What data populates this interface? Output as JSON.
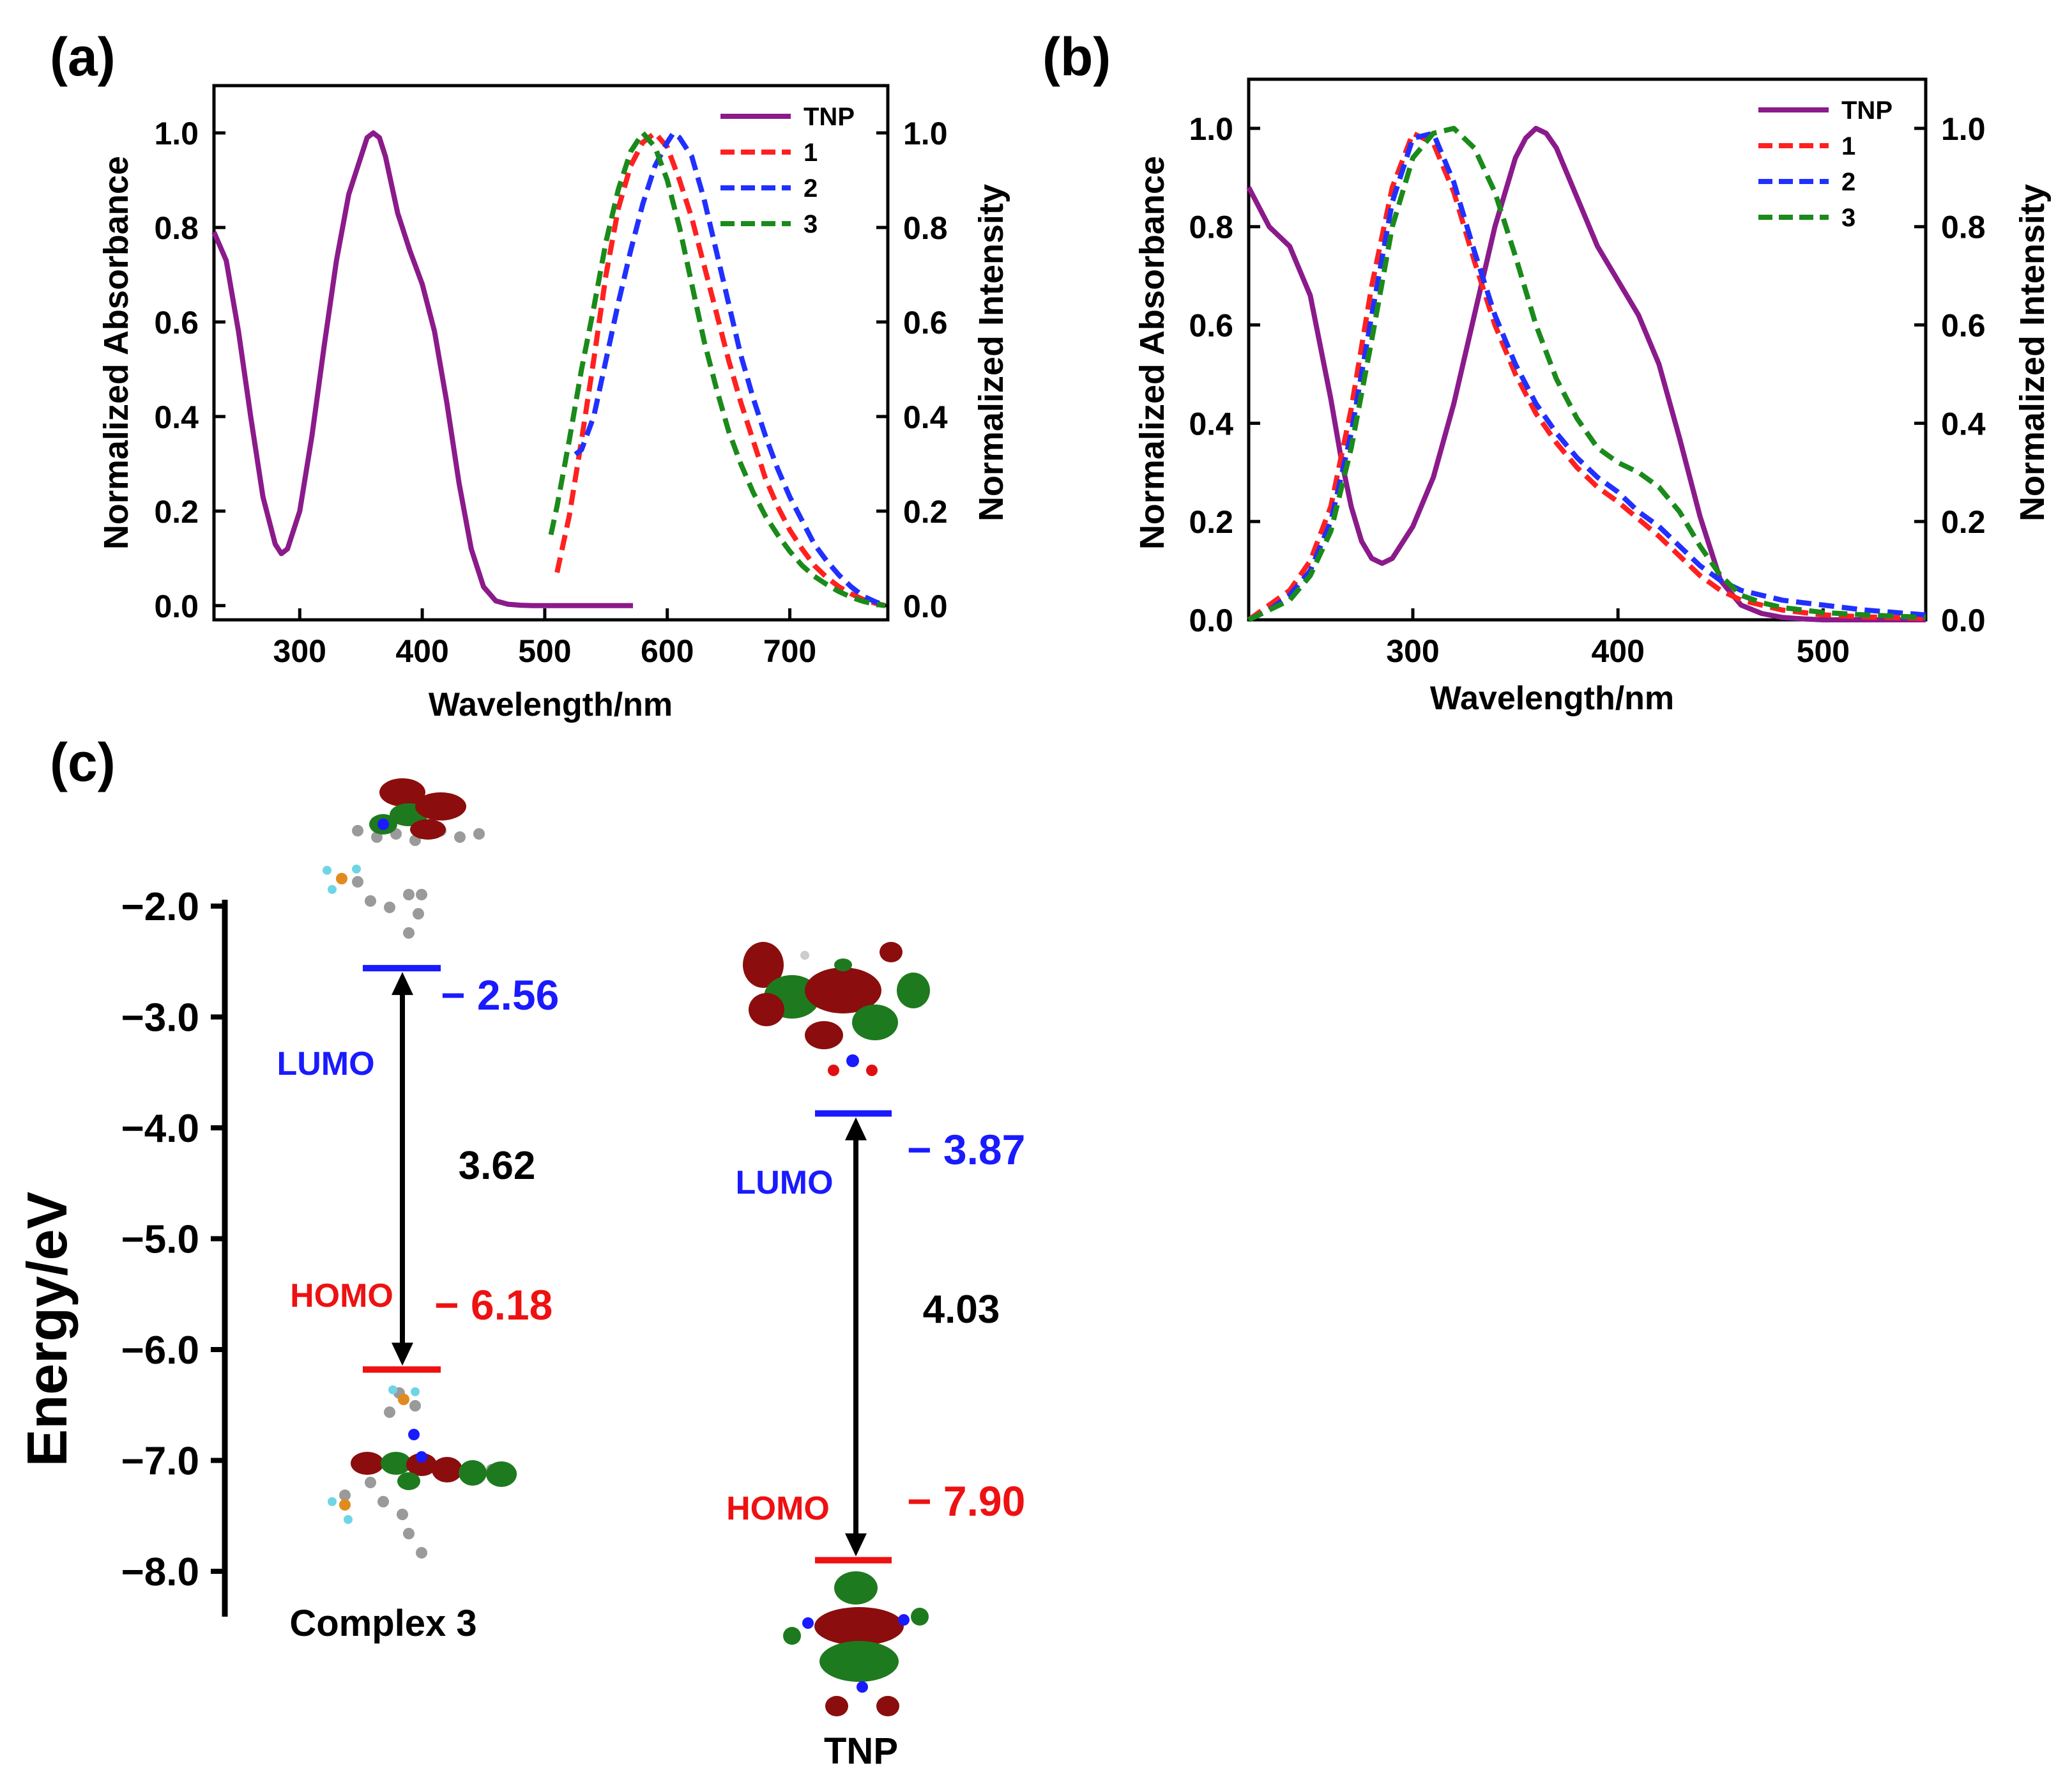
{
  "panels": {
    "a": {
      "label": "(a)"
    },
    "b": {
      "label": "(b)"
    },
    "c": {
      "label": "(c)"
    }
  },
  "colors": {
    "TNP": "#8b1a8b",
    "s1": "#ff2020",
    "s2": "#2030ff",
    "s3": "#1a8a1a",
    "lumo": "#1a1aff",
    "homo": "#ee1111",
    "axis": "#000000"
  },
  "chart_data": [
    {
      "id": "a",
      "type": "line",
      "xlabel": "Wavelength/nm",
      "ylabel_left": "Normalized Absorbance",
      "ylabel_right": "Normalized Intensity",
      "xlim": [
        230,
        780
      ],
      "ylim": [
        -0.03,
        1.1
      ],
      "xticks": [
        300,
        400,
        500,
        600,
        700
      ],
      "yticks": [
        0.0,
        0.2,
        0.4,
        0.6,
        0.8,
        1.0
      ],
      "ytick_labels": [
        "0.0",
        "0.2",
        "0.4",
        "0.6",
        "0.8",
        "1.0"
      ],
      "xtick_labels": [
        "300",
        "400",
        "500",
        "600",
        "700"
      ],
      "legend": {
        "position": "top-right",
        "entries": [
          "TNP",
          "1",
          "2",
          "3"
        ]
      },
      "series": [
        {
          "name": "TNP",
          "style": "solid",
          "x": [
            230,
            240,
            250,
            260,
            270,
            280,
            285,
            290,
            300,
            310,
            320,
            330,
            340,
            350,
            355,
            360,
            365,
            370,
            375,
            380,
            390,
            400,
            410,
            420,
            430,
            440,
            450,
            460,
            470,
            480,
            490,
            500,
            520,
            540,
            560,
            572
          ],
          "y": [
            0.79,
            0.73,
            0.58,
            0.4,
            0.23,
            0.13,
            0.11,
            0.12,
            0.2,
            0.36,
            0.55,
            0.73,
            0.87,
            0.95,
            0.99,
            1.0,
            0.99,
            0.95,
            0.89,
            0.83,
            0.75,
            0.68,
            0.58,
            0.43,
            0.26,
            0.12,
            0.04,
            0.01,
            0.003,
            0.001,
            0.0,
            0.0,
            0.0,
            0.0,
            0.0,
            0.0
          ]
        },
        {
          "name": "1",
          "style": "dashed",
          "x": [
            510,
            520,
            530,
            540,
            550,
            560,
            570,
            580,
            590,
            600,
            610,
            620,
            630,
            640,
            650,
            660,
            670,
            680,
            690,
            700,
            710,
            720,
            730,
            740,
            750,
            760,
            770,
            778
          ],
          "y": [
            0.07,
            0.19,
            0.35,
            0.52,
            0.7,
            0.84,
            0.93,
            0.98,
            1.0,
            0.97,
            0.9,
            0.82,
            0.72,
            0.62,
            0.52,
            0.43,
            0.35,
            0.27,
            0.21,
            0.16,
            0.12,
            0.085,
            0.06,
            0.04,
            0.025,
            0.013,
            0.005,
            0.0
          ]
        },
        {
          "name": "2",
          "style": "dashed",
          "x": [
            525,
            530,
            540,
            550,
            560,
            570,
            580,
            590,
            600,
            605,
            610,
            620,
            630,
            640,
            650,
            660,
            670,
            680,
            690,
            700,
            710,
            720,
            730,
            740,
            750,
            760,
            770,
            778
          ],
          "y": [
            0.32,
            0.33,
            0.4,
            0.52,
            0.64,
            0.75,
            0.85,
            0.93,
            0.98,
            1.0,
            0.99,
            0.95,
            0.86,
            0.75,
            0.64,
            0.53,
            0.44,
            0.36,
            0.29,
            0.23,
            0.18,
            0.13,
            0.095,
            0.065,
            0.04,
            0.02,
            0.008,
            0.0
          ]
        },
        {
          "name": "3",
          "style": "dashed",
          "x": [
            505,
            510,
            520,
            530,
            540,
            550,
            560,
            570,
            580,
            590,
            600,
            610,
            620,
            630,
            640,
            650,
            660,
            670,
            680,
            690,
            700,
            710,
            720,
            730,
            740,
            750,
            760,
            770,
            778
          ],
          "y": [
            0.15,
            0.21,
            0.35,
            0.5,
            0.63,
            0.77,
            0.88,
            0.96,
            1.0,
            0.97,
            0.9,
            0.8,
            0.68,
            0.56,
            0.46,
            0.37,
            0.3,
            0.24,
            0.19,
            0.15,
            0.115,
            0.085,
            0.062,
            0.045,
            0.03,
            0.018,
            0.009,
            0.003,
            0.0
          ]
        }
      ]
    },
    {
      "id": "b",
      "type": "line",
      "xlabel": "Wavelength/nm",
      "ylabel_left": "Normalized Absorbance",
      "ylabel_right": "Normalized Intensity",
      "xlim": [
        220,
        550
      ],
      "ylim": [
        0.0,
        1.1
      ],
      "xticks": [
        300,
        400,
        500
      ],
      "yticks": [
        0.0,
        0.2,
        0.4,
        0.6,
        0.8,
        1.0
      ],
      "ytick_labels": [
        "0.0",
        "0.2",
        "0.4",
        "0.6",
        "0.8",
        "1.0"
      ],
      "xtick_labels": [
        "300",
        "400",
        "500"
      ],
      "legend": {
        "position": "top-right",
        "entries": [
          "TNP",
          "1",
          "2",
          "3"
        ]
      },
      "series": [
        {
          "name": "TNP",
          "style": "solid",
          "x": [
            220,
            230,
            240,
            250,
            260,
            265,
            270,
            275,
            280,
            285,
            290,
            300,
            310,
            320,
            330,
            340,
            350,
            355,
            360,
            365,
            370,
            380,
            390,
            400,
            410,
            420,
            430,
            440,
            450,
            460,
            470,
            480,
            490,
            500,
            520,
            550
          ],
          "y": [
            0.88,
            0.8,
            0.76,
            0.66,
            0.45,
            0.33,
            0.23,
            0.16,
            0.125,
            0.115,
            0.125,
            0.19,
            0.29,
            0.44,
            0.62,
            0.8,
            0.94,
            0.98,
            1.0,
            0.99,
            0.96,
            0.86,
            0.76,
            0.69,
            0.62,
            0.52,
            0.37,
            0.21,
            0.08,
            0.03,
            0.013,
            0.005,
            0.002,
            0.0,
            0.0,
            0.0
          ]
        },
        {
          "name": "1",
          "style": "dashed",
          "x": [
            220,
            230,
            240,
            250,
            260,
            270,
            280,
            290,
            300,
            310,
            320,
            330,
            340,
            350,
            360,
            370,
            380,
            390,
            400,
            410,
            420,
            430,
            440,
            450,
            460,
            470,
            480,
            490,
            500,
            520,
            550
          ],
          "y": [
            0.0,
            0.03,
            0.06,
            0.12,
            0.23,
            0.43,
            0.68,
            0.88,
            0.99,
            0.97,
            0.87,
            0.73,
            0.6,
            0.5,
            0.42,
            0.36,
            0.31,
            0.27,
            0.24,
            0.205,
            0.17,
            0.13,
            0.09,
            0.06,
            0.04,
            0.03,
            0.02,
            0.015,
            0.01,
            0.006,
            0.003
          ]
        },
        {
          "name": "2",
          "style": "dashed",
          "x": [
            220,
            230,
            240,
            250,
            260,
            270,
            280,
            290,
            300,
            310,
            320,
            330,
            340,
            350,
            360,
            370,
            380,
            390,
            400,
            410,
            420,
            430,
            440,
            450,
            460,
            470,
            480,
            490,
            500,
            520,
            550
          ],
          "y": [
            0.0,
            0.02,
            0.05,
            0.1,
            0.2,
            0.38,
            0.62,
            0.85,
            0.98,
            0.99,
            0.89,
            0.75,
            0.62,
            0.52,
            0.44,
            0.38,
            0.33,
            0.29,
            0.26,
            0.22,
            0.19,
            0.15,
            0.11,
            0.08,
            0.06,
            0.05,
            0.04,
            0.035,
            0.03,
            0.02,
            0.01
          ]
        },
        {
          "name": "3",
          "style": "dashed",
          "x": [
            220,
            230,
            240,
            250,
            260,
            270,
            280,
            290,
            300,
            310,
            320,
            330,
            340,
            350,
            360,
            370,
            380,
            390,
            400,
            410,
            420,
            430,
            440,
            450,
            460,
            470,
            480,
            490,
            500,
            520,
            550
          ],
          "y": [
            0.0,
            0.02,
            0.04,
            0.09,
            0.18,
            0.35,
            0.57,
            0.8,
            0.94,
            0.99,
            1.0,
            0.96,
            0.87,
            0.74,
            0.6,
            0.49,
            0.41,
            0.35,
            0.32,
            0.3,
            0.27,
            0.22,
            0.15,
            0.09,
            0.05,
            0.035,
            0.025,
            0.02,
            0.015,
            0.01,
            0.005
          ]
        }
      ]
    },
    {
      "id": "c",
      "type": "energy-level-diagram",
      "ylabel": "Energy/eV",
      "ylim": [
        -8.45,
        -2.0
      ],
      "yticks": [
        -2.0,
        -3.0,
        -4.0,
        -5.0,
        -6.0,
        -7.0,
        -8.0
      ],
      "ytick_labels": [
        "−2.0",
        "−3.0",
        "−4.0",
        "−5.0",
        "−6.0",
        "−7.0",
        "−8.0"
      ],
      "systems": [
        {
          "name": "Complex 3",
          "lumo": -2.56,
          "homo": -6.18,
          "gap": 3.62,
          "lumo_label": "LUMO",
          "homo_label": "HOMO",
          "lumo_value": "− 2.56",
          "homo_value": "− 6.18",
          "gap_label": "3.62"
        },
        {
          "name": "TNP",
          "lumo": -3.87,
          "homo": -7.9,
          "gap": 4.03,
          "lumo_label": "LUMO",
          "homo_label": "HOMO",
          "lumo_value": "− 3.87",
          "homo_value": "− 7.90",
          "gap_label": "4.03"
        }
      ]
    }
  ]
}
